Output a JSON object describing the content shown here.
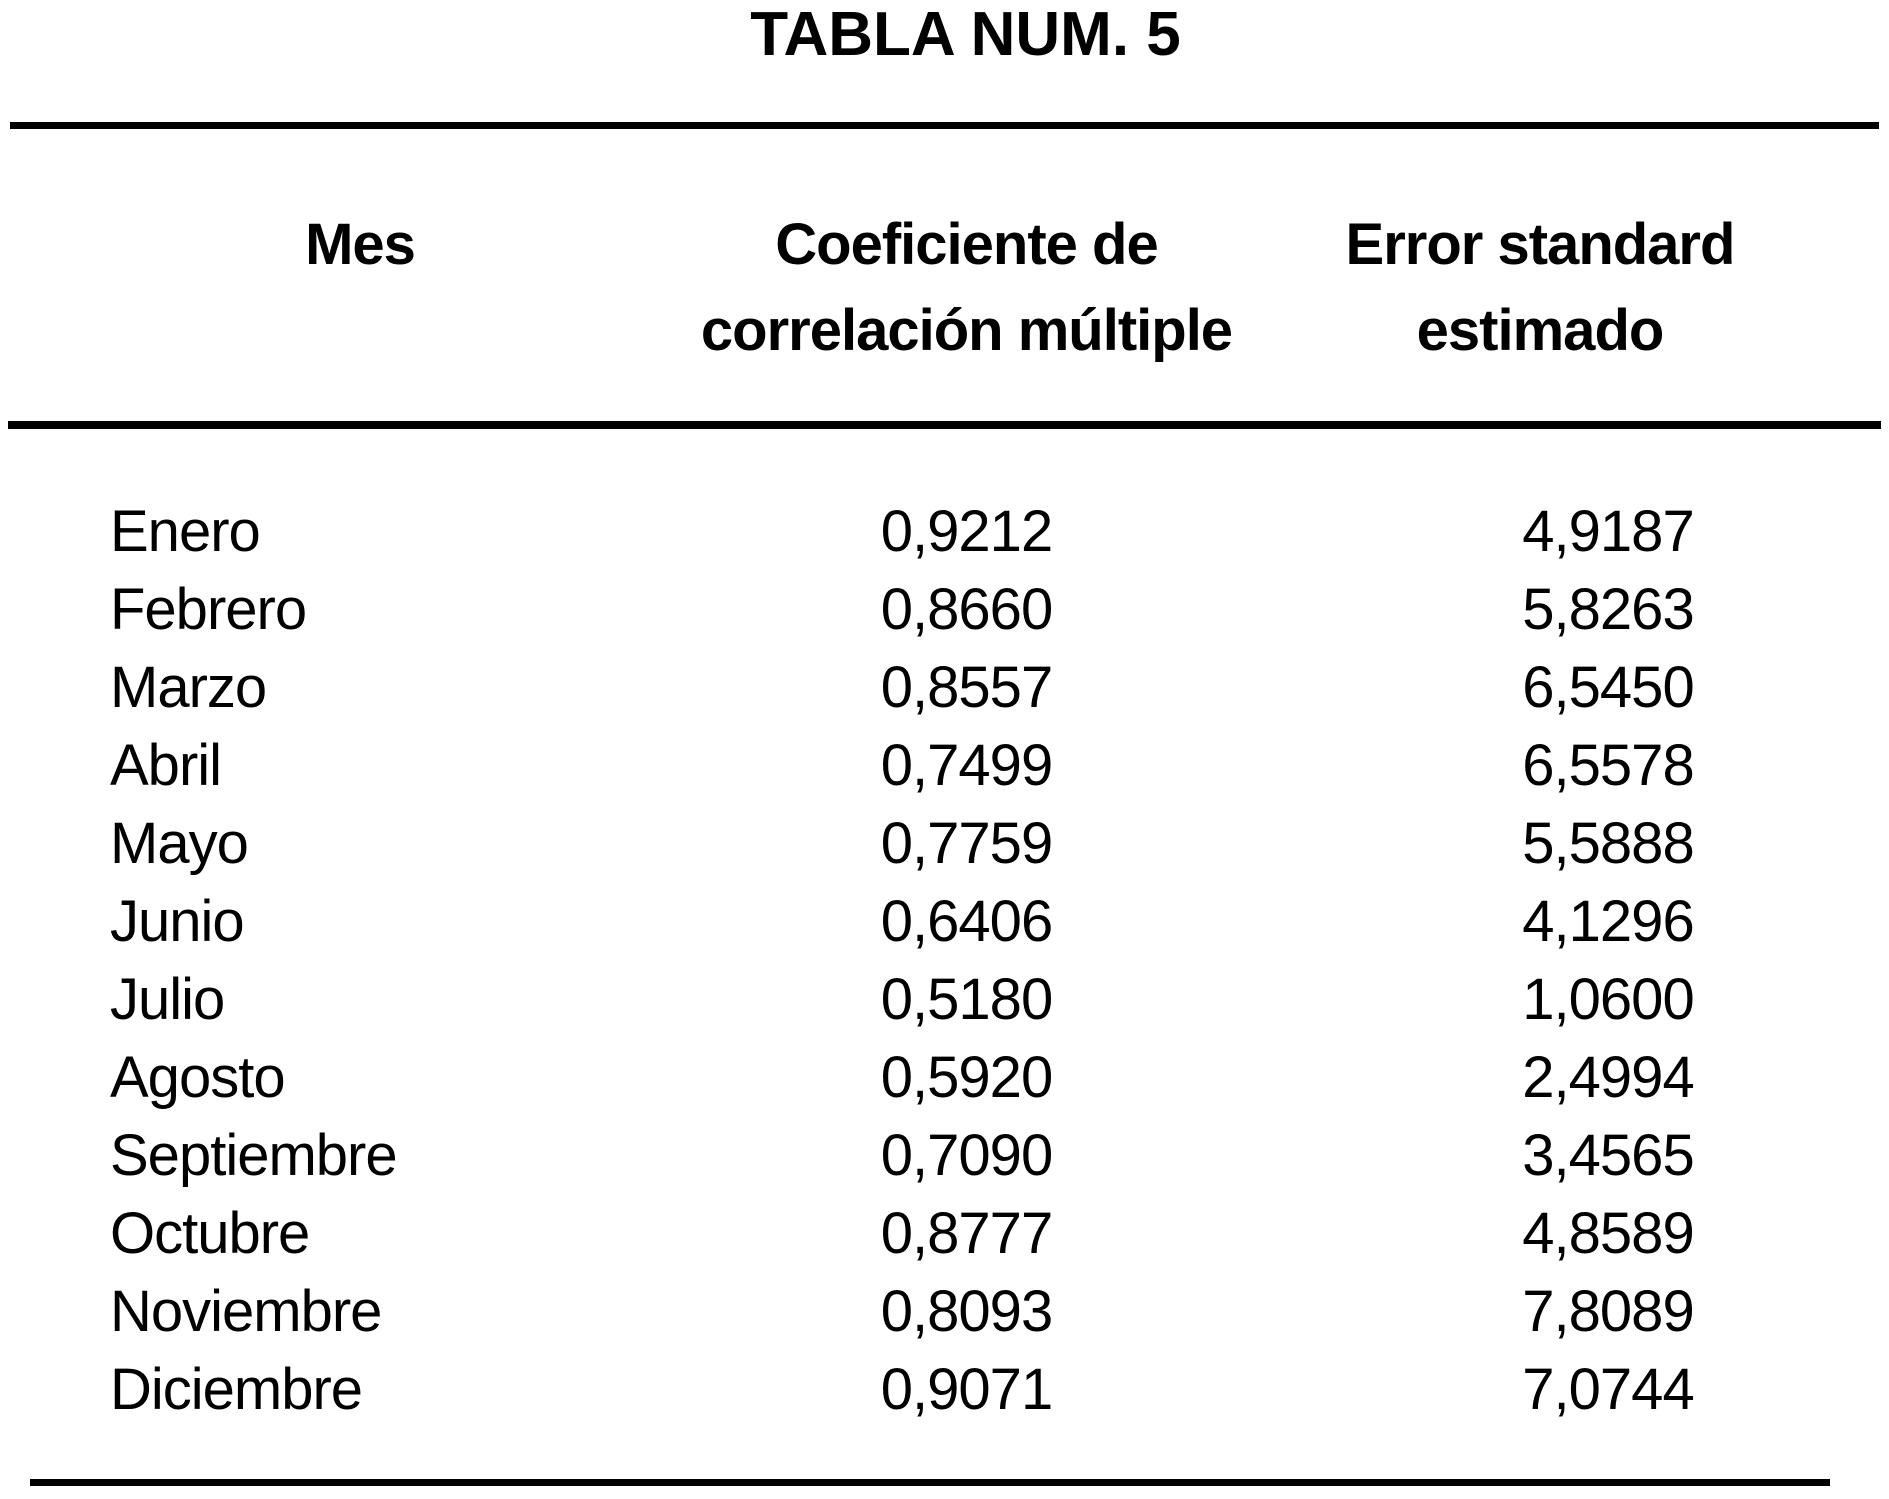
{
  "page": {
    "title": "TABLA NUM. 5"
  },
  "table": {
    "columns": {
      "mes": "Mes",
      "coef_line1": "Coeficiente de",
      "coef_line2": "correlación múltiple",
      "err_line1": "Error standard",
      "err_line2": "estimado"
    },
    "rows": [
      {
        "mes": "Enero",
        "coef": "0,9212",
        "err": "4,9187"
      },
      {
        "mes": "Febrero",
        "coef": "0,8660",
        "err": "5,8263"
      },
      {
        "mes": "Marzo",
        "coef": "0,8557",
        "err": "6,5450"
      },
      {
        "mes": "Abril",
        "coef": "0,7499",
        "err": "6,5578"
      },
      {
        "mes": "Mayo",
        "coef": "0,7759",
        "err": "5,5888"
      },
      {
        "mes": "Junio",
        "coef": "0,6406",
        "err": "4,1296"
      },
      {
        "mes": "Julio",
        "coef": "0,5180",
        "err": "1,0600"
      },
      {
        "mes": "Agosto",
        "coef": "0,5920",
        "err": "2,4994"
      },
      {
        "mes": "Septiembre",
        "coef": "0,7090",
        "err": "3,4565"
      },
      {
        "mes": "Octubre",
        "coef": "0,8777",
        "err": "4,8589"
      },
      {
        "mes": "Noviembre",
        "coef": "0,8093",
        "err": "7,8089"
      },
      {
        "mes": "Diciembre",
        "coef": "0,9071",
        "err": "7,0744"
      }
    ],
    "colors": {
      "ink": "#000000",
      "paper": "#ffffff"
    }
  }
}
